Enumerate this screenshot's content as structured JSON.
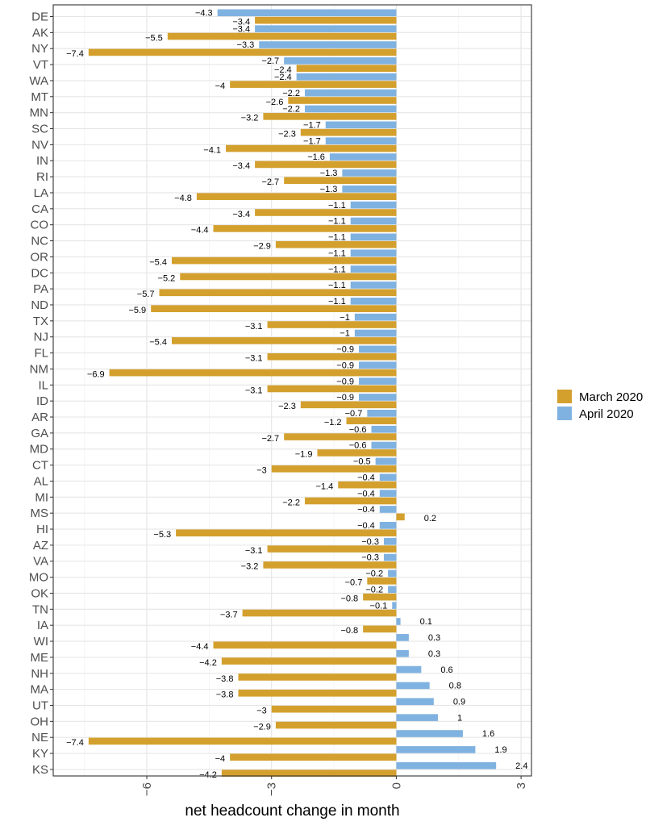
{
  "chart_data": {
    "type": "bar",
    "orientation": "horizontal",
    "xlabel": "net headcount change in month",
    "ylabel": "",
    "xlim": [
      -8.25,
      3.25
    ],
    "xticks": [
      -6,
      -3,
      0,
      3
    ],
    "xtick_labels": [
      "−6",
      "−3",
      "0",
      "3"
    ],
    "grid": true,
    "legend_position": "right",
    "colors": {
      "March 2020": "#d4a02d",
      "April 2020": "#7fb2e0"
    },
    "categories": [
      "DE",
      "AK",
      "NY",
      "VT",
      "WA",
      "MT",
      "MN",
      "SC",
      "NV",
      "IN",
      "RI",
      "LA",
      "CA",
      "CO",
      "NC",
      "OR",
      "DC",
      "PA",
      "ND",
      "TX",
      "NJ",
      "FL",
      "NM",
      "IL",
      "ID",
      "AR",
      "GA",
      "MD",
      "CT",
      "AL",
      "MI",
      "MS",
      "HI",
      "AZ",
      "VA",
      "MO",
      "OK",
      "TN",
      "IA",
      "WI",
      "ME",
      "NH",
      "MA",
      "UT",
      "OH",
      "NE",
      "KY",
      "KS"
    ],
    "series": [
      {
        "name": "March 2020",
        "values": [
          -3.4,
          -5.5,
          -7.4,
          -2.4,
          -4,
          -2.6,
          -3.2,
          -2.3,
          -4.1,
          -3.4,
          -2.7,
          -4.8,
          -3.4,
          -4.4,
          -2.9,
          -5.4,
          -5.2,
          -5.7,
          -5.9,
          -3.1,
          -5.4,
          -3.1,
          -6.9,
          -3.1,
          -2.3,
          -1.2,
          -2.7,
          -1.9,
          -3,
          -1.4,
          -2.2,
          0.2,
          -5.3,
          -3.1,
          -3.2,
          -0.7,
          -0.8,
          -3.7,
          -0.8,
          -4.4,
          -4.2,
          -3.8,
          -3.8,
          -3,
          -2.9,
          -7.4,
          -4,
          -4.2
        ],
        "labels": [
          "−3.4",
          "−5.5",
          "−7.4",
          "−2.4",
          "−4",
          "−2.6",
          "−3.2",
          "−2.3",
          "−4.1",
          "−3.4",
          "−2.7",
          "−4.8",
          "−3.4",
          "−4.4",
          "−2.9",
          "−5.4",
          "−5.2",
          "−5.7",
          "−5.9",
          "−3.1",
          "−5.4",
          "−3.1",
          "−6.9",
          "−3.1",
          "−2.3",
          "−1.2",
          "−2.7",
          "−1.9",
          "−3",
          "−1.4",
          "−2.2",
          "0.2",
          "−5.3",
          "−3.1",
          "−3.2",
          "−0.7",
          "−0.8",
          "−3.7",
          "−0.8",
          "−4.4",
          "−4.2",
          "−3.8",
          "−3.8",
          "−3",
          "−2.9",
          "−7.4",
          "−4",
          "−4.2"
        ]
      },
      {
        "name": "April 2020",
        "values": [
          -4.3,
          -3.4,
          -3.3,
          -2.7,
          -2.4,
          -2.2,
          -2.2,
          -1.7,
          -1.7,
          -1.6,
          -1.3,
          -1.3,
          -1.1,
          -1.1,
          -1.1,
          -1.1,
          -1.1,
          -1.1,
          -1.1,
          -1,
          -1,
          -0.9,
          -0.9,
          -0.9,
          -0.9,
          -0.7,
          -0.6,
          -0.6,
          -0.5,
          -0.4,
          -0.4,
          -0.4,
          -0.4,
          -0.3,
          -0.3,
          -0.2,
          -0.2,
          -0.1,
          0.1,
          0.3,
          0.3,
          0.6,
          0.8,
          0.9,
          1,
          1.6,
          1.9,
          2.4
        ],
        "labels": [
          "−4.3",
          "−3.4",
          "−3.3",
          "−2.7",
          "−2.4",
          "−2.2",
          "−2.2",
          "−1.7",
          "−1.7",
          "−1.6",
          "−1.3",
          "−1.3",
          "−1.1",
          "−1.1",
          "−1.1",
          "−1.1",
          "−1.1",
          "−1.1",
          "−1.1",
          "−1",
          "−1",
          "−0.9",
          "−0.9",
          "−0.9",
          "−0.9",
          "−0.7",
          "−0.6",
          "−0.6",
          "−0.5",
          "−0.4",
          "−0.4",
          "−0.4",
          "−0.4",
          "−0.3",
          "−0.3",
          "−0.2",
          "−0.2",
          "−0.1",
          "0.1",
          "0.3",
          "0.3",
          "0.6",
          "0.8",
          "0.9",
          "1",
          "1.6",
          "1.9",
          "2.4"
        ]
      }
    ]
  }
}
